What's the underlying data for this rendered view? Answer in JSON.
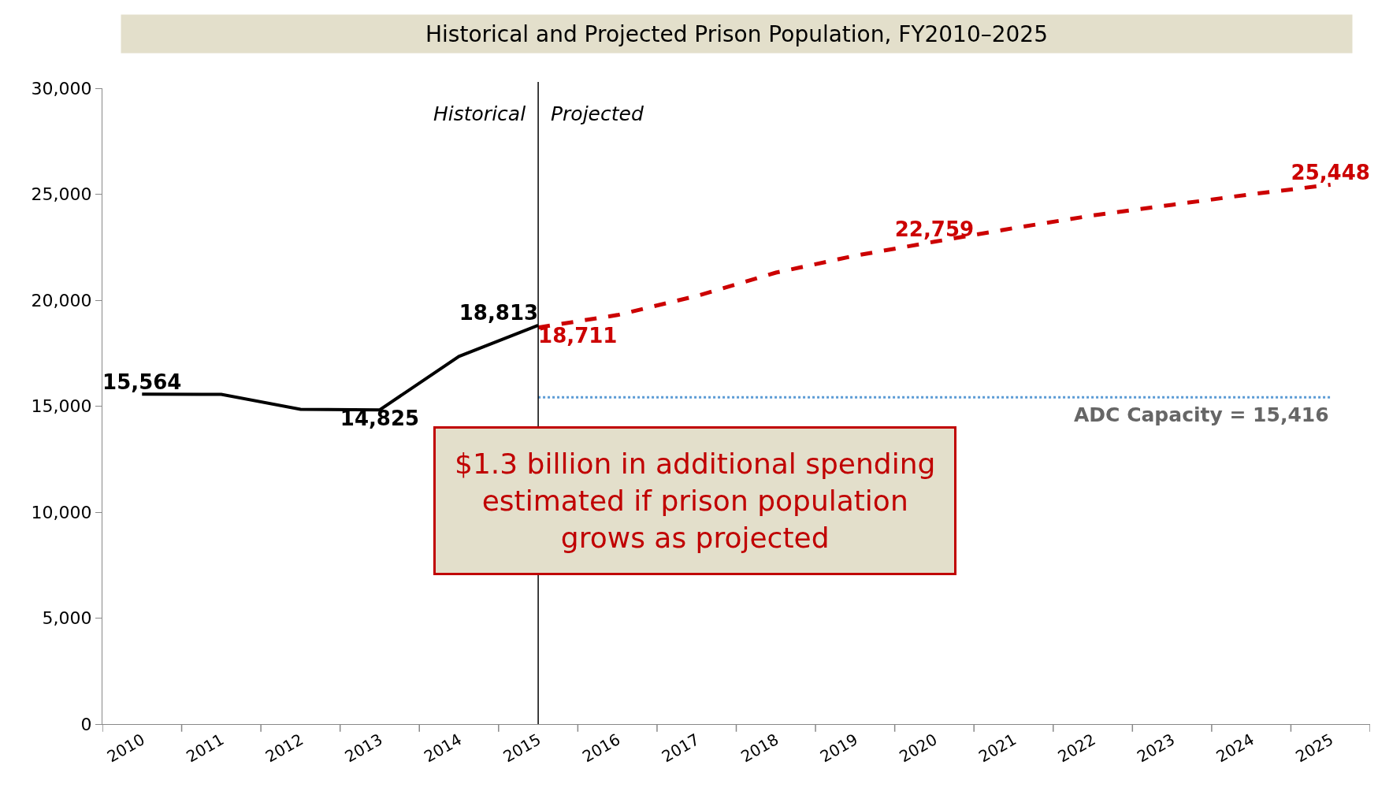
{
  "chart_data": {
    "type": "line",
    "title": "Historical and Projected Prison Population, FY2010–2025",
    "categories": [
      "2010",
      "2011",
      "2012",
      "2013",
      "2014",
      "2015",
      "2016",
      "2017",
      "2018",
      "2019",
      "2020",
      "2021",
      "2022",
      "2023",
      "2024",
      "2025"
    ],
    "series": [
      {
        "color": "#000000",
        "line_style": "solid",
        "values": [
          15564,
          15560,
          14850,
          14825,
          17350,
          18813,
          null,
          null,
          null,
          null,
          null,
          null,
          null,
          null,
          null,
          null
        ],
        "value_labels": [
          "15,564",
          null,
          null,
          "14,825",
          null,
          "18,813",
          null,
          null,
          null,
          null,
          null,
          null,
          null,
          null,
          null,
          null
        ]
      },
      {
        "color": "#cc0000",
        "line_style": "dashed",
        "values": [
          null,
          null,
          null,
          null,
          null,
          18711,
          19300,
          20200,
          21300,
          22100,
          22759,
          23400,
          24000,
          24500,
          25000,
          25448
        ],
        "value_labels": [
          null,
          null,
          null,
          null,
          null,
          "18,711",
          null,
          null,
          null,
          null,
          "22,759",
          null,
          null,
          null,
          null,
          "25,448"
        ]
      },
      {
        "color": "#5b9bd5",
        "line_style": "dotted",
        "values": [
          null,
          null,
          null,
          null,
          null,
          15416,
          15416,
          15416,
          15416,
          15416,
          15416,
          15416,
          15416,
          15416,
          15416,
          15416
        ]
      }
    ],
    "ref_lines": [
      {
        "axis": "x",
        "value": "2015",
        "color": "#000000"
      }
    ],
    "annotations": [
      "Historical",
      "Projected",
      "$1.3 billion in additional spending estimated if prison population grows as projected",
      {
        "text": "ADC Capacity = 15,416",
        "x": "2025",
        "y": 15416
      }
    ],
    "ylim": [
      0,
      30000
    ],
    "yticks": [
      0,
      {
        "value": 5000,
        "label": "5,000"
      },
      {
        "value": 10000,
        "label": "10,000"
      },
      {
        "value": 15000,
        "label": "15,000"
      },
      {
        "value": 20000,
        "label": "20,000"
      },
      {
        "value": 25000,
        "label": "25,000"
      },
      {
        "value": 30000,
        "label": "30,000"
      }
    ],
    "marker": "none"
  }
}
